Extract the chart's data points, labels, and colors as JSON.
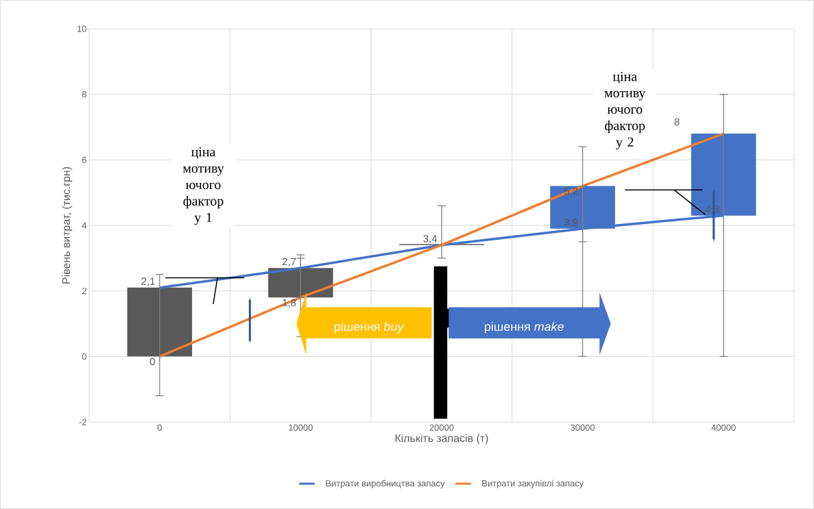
{
  "chart_data": {
    "type": "line",
    "xlabel": "Кількіть запасів (т)",
    "ylabel": "Рівень витрат, (тис.грн)",
    "categories": [
      "0",
      "10000",
      "20000",
      "30000",
      "40000"
    ],
    "series": [
      {
        "name": "Витрати виробництва запасу",
        "color": "#4472c4",
        "values": [
          2.1,
          2.7,
          3.4,
          3.9,
          4.3
        ],
        "value_labels": [
          "2,1",
          "2,7",
          "3,4",
          "3,9",
          "4,3"
        ],
        "errors": [
          [
            -1.2,
            2.5
          ],
          [
            0.6,
            3.1
          ],
          [
            3.0,
            4.6
          ],
          [
            0,
            6.4
          ],
          [
            0,
            8.0
          ]
        ]
      },
      {
        "name": "Витрати закупівлі запасу",
        "color": "#ed7d31",
        "values": [
          0,
          1.8,
          3.4,
          5.2,
          6.8
        ],
        "value_labels": [
          "0",
          "1,8",
          null,
          "5,2",
          null
        ],
        "errors": [
          null,
          [
            1.8,
            3.0
          ],
          null,
          [
            3.5,
            5.2
          ],
          null
        ]
      },
      {
        "type": "bar",
        "base": [
          0,
          1.8,
          3.4,
          3.9,
          4.3
        ],
        "values": [
          2.1,
          0.9,
          0,
          1.3,
          2.5
        ],
        "colors": [
          "#595959",
          "#595959",
          "#595959",
          "#4472c4",
          "#4472c4"
        ]
      }
    ],
    "ylim": [
      -2,
      10
    ],
    "yticks": [
      -2,
      0,
      2,
      4,
      6,
      8,
      10
    ],
    "grid": true,
    "legend": "bottom",
    "annotations": [
      "ціна мотиву ючого фактор у 1",
      "ціна мотиву ючого фактор у 2",
      "рішення *buy*",
      "рішення *make*",
      "8"
    ]
  }
}
